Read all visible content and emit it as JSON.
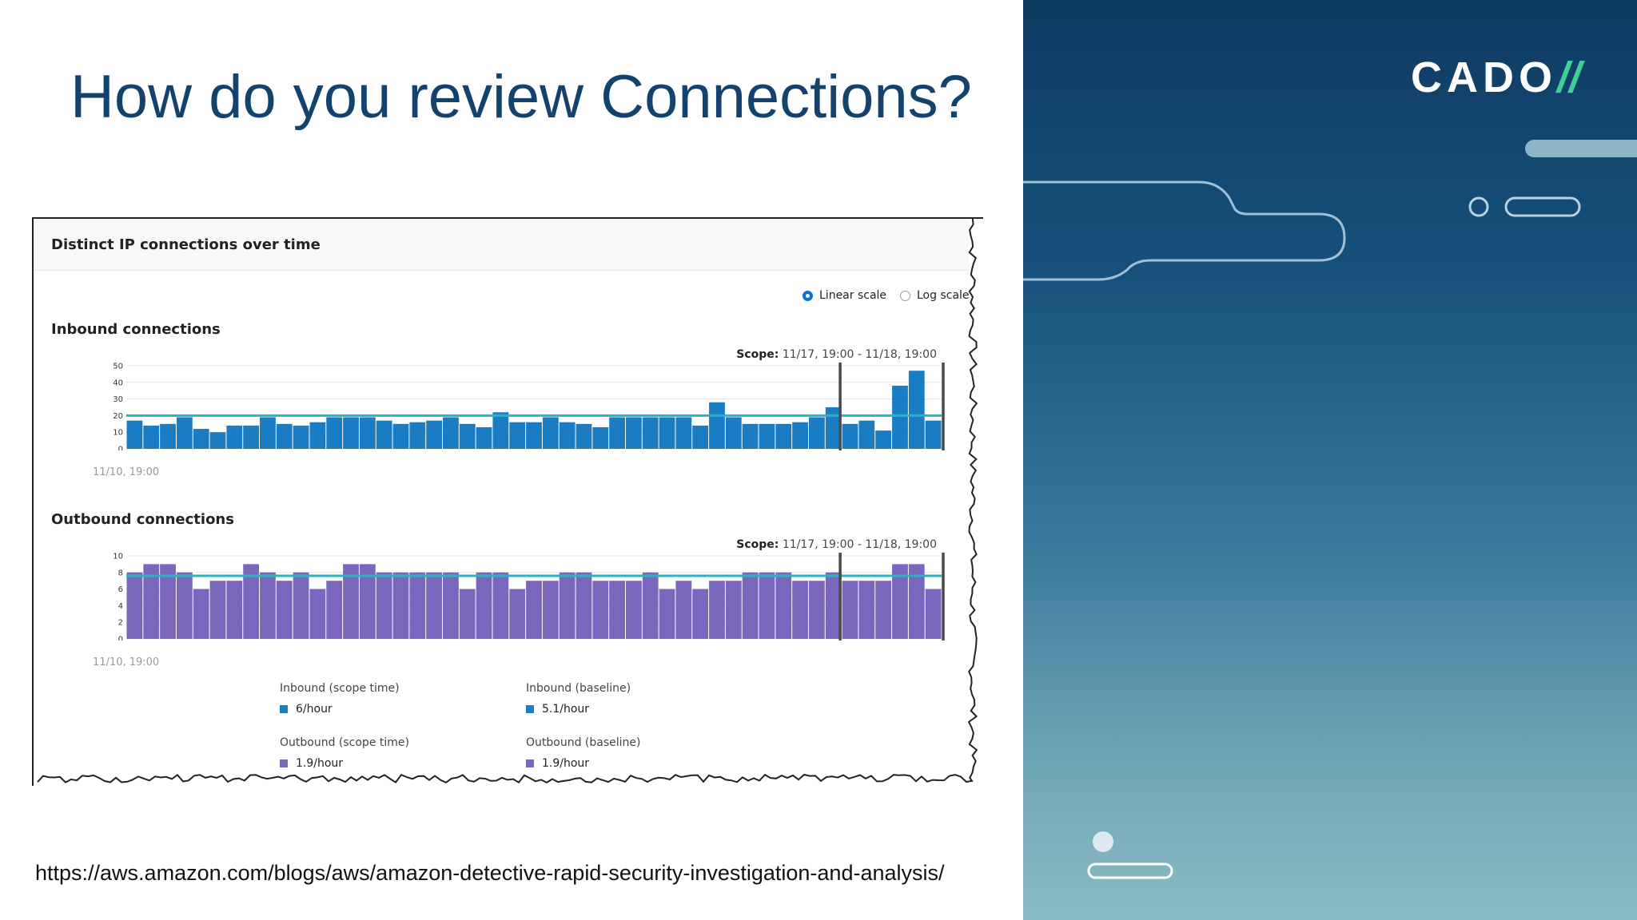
{
  "slide": {
    "title": "How do you review Connections?",
    "url": "https://aws.amazon.com/blogs/aws/amazon-detective-rapid-security-investigation-and-analysis/"
  },
  "logo": {
    "text": "CADO",
    "slash": "//"
  },
  "colors": {
    "title": "#14426e",
    "inbound": "#1a7dc4",
    "outbound": "#7b66bd",
    "baseline": "#2bb3c0",
    "accent": "#3ecf9a"
  },
  "card": {
    "title": "Distinct IP connections over time",
    "scale_options": [
      {
        "label": "Linear scale",
        "selected": true
      },
      {
        "label": "Log scale",
        "selected": false
      }
    ],
    "inbound": {
      "title": "Inbound connections",
      "scope_label": "Scope:",
      "scope_value": "11/17, 19:00 - 11/18, 19:00",
      "start_label": "11/10, 19:00"
    },
    "outbound": {
      "title": "Outbound connections",
      "scope_label": "Scope:",
      "scope_value": "11/17, 19:00 - 11/18, 19:00",
      "start_label": "11/10, 19:00"
    },
    "legend": [
      {
        "title": "Inbound (scope time)",
        "value": "6/hour",
        "color": "#1a7dc4"
      },
      {
        "title": "Inbound (baseline)",
        "value": "5.1/hour",
        "color": "#1a7dc4"
      },
      {
        "title": "Outbound (scope time)",
        "value": "1.9/hour",
        "color": "#7b66bd"
      },
      {
        "title": "Outbound (baseline)",
        "value": "1.9/hour",
        "color": "#7b66bd"
      }
    ]
  },
  "chart_data": [
    {
      "type": "bar",
      "title": "Inbound connections",
      "ylim": [
        0,
        50
      ],
      "yticks": [
        0,
        10,
        20,
        30,
        40,
        50
      ],
      "baseline": 20,
      "highlight_last": 6,
      "values": [
        17,
        14,
        15,
        19,
        12,
        10,
        14,
        14,
        19,
        15,
        14,
        16,
        19,
        19,
        19,
        17,
        15,
        16,
        17,
        19,
        15,
        13,
        22,
        16,
        16,
        19,
        16,
        15,
        13,
        19,
        19,
        19,
        19,
        19,
        14,
        28,
        19,
        15,
        15,
        15,
        16,
        19,
        25,
        15,
        17,
        11,
        38,
        47,
        17
      ]
    },
    {
      "type": "bar",
      "title": "Outbound connections",
      "ylim": [
        0,
        10
      ],
      "yticks": [
        0,
        2,
        4,
        6,
        8,
        10
      ],
      "baseline": 7.6,
      "highlight_last": 6,
      "values": [
        8,
        9,
        9,
        8,
        6,
        7,
        7,
        9,
        8,
        7,
        8,
        6,
        7,
        9,
        9,
        8,
        8,
        8,
        8,
        8,
        6,
        8,
        8,
        6,
        7,
        7,
        8,
        8,
        7,
        7,
        7,
        8,
        6,
        7,
        6,
        7,
        7,
        8,
        8,
        8,
        7,
        7,
        8,
        7,
        7,
        7,
        9,
        9,
        6
      ]
    }
  ]
}
